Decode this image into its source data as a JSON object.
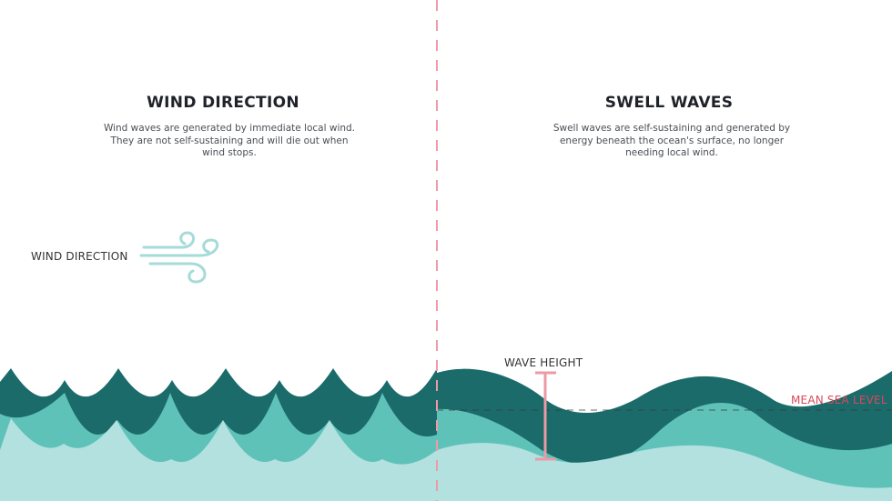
{
  "left_panel": {
    "title": "WIND DIRECTION",
    "description": "Wind waves are generated by immediate local wind. They are not self-sustaining and will die out when wind stops.",
    "wind_label": "WIND DIRECTION",
    "wind_icon": "wind-icon"
  },
  "right_panel": {
    "title": "SWELL WAVES",
    "description": "Swell waves are self-sustaining and generated by energy beneath the ocean's surface, no longer needing local wind.",
    "wave_height_label": "WAVE HEIGHT",
    "mean_sea_level_label": "MEAN SEA LEVEL"
  },
  "colors": {
    "wave_dark": "#1b6b6b",
    "wave_mid": "#5fc2b9",
    "wave_light": "#b3e1e0",
    "divider": "#ef9aa8",
    "mean_sea_level_line": "#d8485c",
    "wave_height_marker": "#ec9aa6",
    "wind_icon": "#a5dbd8"
  }
}
